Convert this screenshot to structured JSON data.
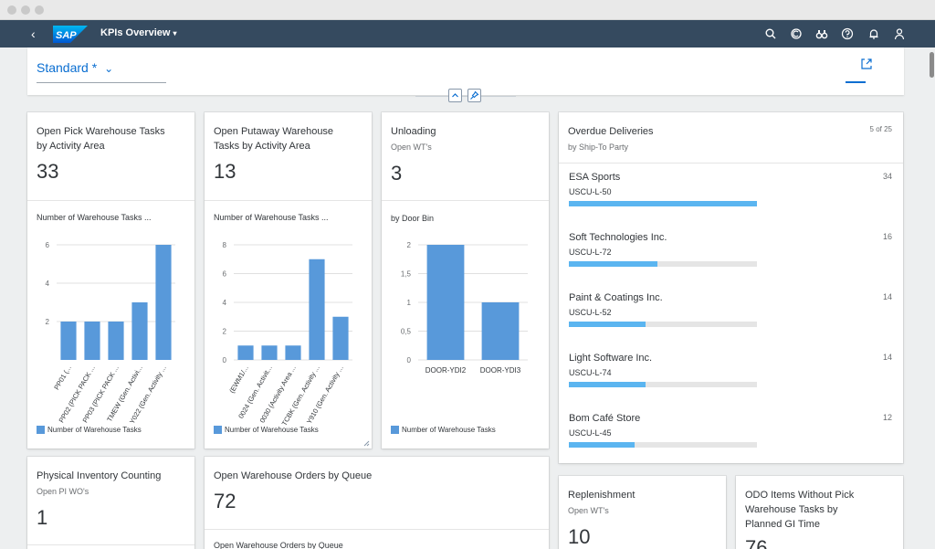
{
  "shell": {
    "logo_text": "SAP",
    "title": "KPIs Overview",
    "icons": [
      "search-icon",
      "copilot-icon",
      "binoculars-icon",
      "help-icon",
      "bell-icon",
      "user-icon"
    ]
  },
  "header": {
    "variant": "Standard *",
    "share_icon": "share-icon"
  },
  "colors": {
    "shell": "#354a5f",
    "bar": "#5899da",
    "progress": "#5bb5f0",
    "link": "#0a6ed1"
  },
  "cards": {
    "pick": {
      "title_line1": "Open Pick Warehouse Tasks",
      "title_line2": "by Activity Area",
      "kpi": "33",
      "chart_title": "Number of Warehouse Tasks ...",
      "legend": "Number of Warehouse Tasks"
    },
    "putaway": {
      "title_line1": "Open Putaway Warehouse",
      "title_line2": "Tasks by Activity Area",
      "kpi": "13",
      "chart_title": "Number of Warehouse Tasks ...",
      "legend": "Number of Warehouse Tasks"
    },
    "unloading": {
      "title": "Unloading",
      "subtitle": "Open WT's",
      "kpi": "3",
      "chart_title": "by Door Bin",
      "legend": "Number of Warehouse Tasks"
    },
    "overdue": {
      "title": "Overdue Deliveries",
      "subtitle": "by Ship-To Party",
      "count": "5 of 25",
      "items": [
        {
          "name": "ESA Sports",
          "code": "USCU-L-50",
          "value": "34",
          "fraction": 1.0
        },
        {
          "name": "Soft Technologies Inc.",
          "code": "USCU-L-72",
          "value": "16",
          "fraction": 0.47
        },
        {
          "name": "Paint & Coatings Inc.",
          "code": "USCU-L-52",
          "value": "14",
          "fraction": 0.41
        },
        {
          "name": "Light Software Inc.",
          "code": "USCU-L-74",
          "value": "14",
          "fraction": 0.41
        },
        {
          "name": "Bom Café Store",
          "code": "USCU-L-45",
          "value": "12",
          "fraction": 0.35
        }
      ]
    },
    "inventory": {
      "title": "Physical Inventory Counting",
      "subtitle": "Open PI WO's",
      "kpi": "1"
    },
    "orders": {
      "title": "Open Warehouse Orders by Queue",
      "kpi": "72",
      "chart_title": "Open Warehouse Orders by Queue"
    },
    "replenishment": {
      "title": "Replenishment",
      "subtitle": "Open WT's",
      "kpi": "10"
    },
    "odo": {
      "title_line1": "ODO Items Without Pick",
      "title_line2": "Warehouse Tasks by",
      "title_line3": "Planned GI Time",
      "kpi": "76"
    }
  },
  "chart_data": [
    {
      "type": "bar",
      "categories": [
        "PP01 (...",
        "PP02 (PICK PACK ...",
        "PP03 (PICK PACK ...",
        "TMEW (Gen. Activi...",
        "Y022 (Gen. Activity ..."
      ],
      "values": [
        2,
        2,
        2,
        3,
        6
      ],
      "yticks": [
        2,
        4,
        6
      ],
      "ylim": [
        0,
        6
      ],
      "legend": "Number of Warehouse Tasks"
    },
    {
      "type": "bar",
      "categories": [
        "(EWM1/...",
        "0024 (Gen. Activit...",
        "0030 (Activity Area ...",
        "TCBK (Gen. Activity ...",
        "Y910 (Gen. Activity ..."
      ],
      "values": [
        1,
        1,
        1,
        7,
        3
      ],
      "yticks": [
        0,
        2,
        4,
        6,
        8
      ],
      "ylim": [
        0,
        8
      ],
      "legend": "Number of Warehouse Tasks"
    },
    {
      "type": "bar",
      "categories": [
        "DOOR-YDI2",
        "DOOR-YDI3"
      ],
      "values": [
        2,
        1
      ],
      "yticks": [
        "0",
        "0,5",
        "1",
        "1,5",
        "2"
      ],
      "ylim": [
        0,
        2
      ],
      "legend": "Number of Warehouse Tasks"
    }
  ]
}
